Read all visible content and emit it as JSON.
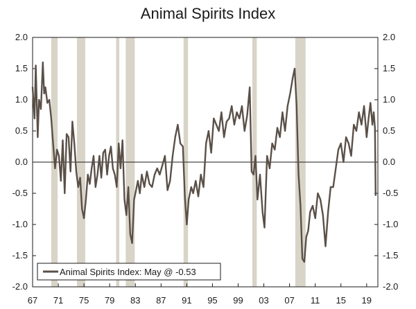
{
  "chart_data": {
    "type": "line",
    "title": "Animal Spirits Index",
    "xlabel": "",
    "ylabel": "",
    "xlim": [
      1967,
      2020.75
    ],
    "ylim": [
      -2.0,
      2.0
    ],
    "y_ticks": [
      "2.0",
      "1.5",
      "1.0",
      "0.5",
      "0.0",
      "-0.5",
      "-1.0",
      "-1.5",
      "-2.0"
    ],
    "x_ticks": [
      "67",
      "71",
      "75",
      "79",
      "83",
      "87",
      "91",
      "95",
      "99",
      "03",
      "07",
      "11",
      "15",
      "19"
    ],
    "recessions": [
      [
        1969.9,
        1970.9
      ],
      [
        1973.9,
        1975.2
      ],
      [
        1980.0,
        1980.5
      ],
      [
        1981.5,
        1982.9
      ],
      [
        1990.5,
        1991.2
      ],
      [
        2001.2,
        2001.9
      ],
      [
        2007.9,
        2009.5
      ]
    ],
    "legend": "Animal Spirits Index: May @ -0.53",
    "legend_position": "bottom-left",
    "line_color": "#5a5048",
    "recession_color": "#d9d4c8",
    "series": [
      {
        "name": "Animal Spirits Index",
        "x": [
          1967.0,
          1967.3,
          1967.5,
          1967.8,
          1968.0,
          1968.3,
          1968.6,
          1968.8,
          1969.0,
          1969.3,
          1969.6,
          1969.9,
          1970.2,
          1970.5,
          1970.8,
          1971.1,
          1971.4,
          1971.7,
          1972.0,
          1972.3,
          1972.6,
          1972.9,
          1973.2,
          1973.5,
          1973.8,
          1974.1,
          1974.4,
          1974.7,
          1975.0,
          1975.3,
          1975.6,
          1975.9,
          1976.2,
          1976.5,
          1976.8,
          1977.1,
          1977.4,
          1977.7,
          1978.0,
          1978.3,
          1978.6,
          1978.9,
          1979.2,
          1979.5,
          1979.8,
          1980.1,
          1980.4,
          1980.7,
          1981.0,
          1981.3,
          1981.6,
          1981.9,
          1982.2,
          1982.5,
          1982.8,
          1983.1,
          1983.4,
          1983.7,
          1984.0,
          1984.4,
          1984.8,
          1985.2,
          1985.6,
          1986.0,
          1986.4,
          1986.8,
          1987.2,
          1987.6,
          1988.0,
          1988.4,
          1988.8,
          1989.2,
          1989.6,
          1990.0,
          1990.4,
          1990.7,
          1991.0,
          1991.3,
          1991.7,
          1992.0,
          1992.4,
          1992.8,
          1993.2,
          1993.6,
          1994.0,
          1994.4,
          1994.8,
          1995.2,
          1995.6,
          1996.0,
          1996.4,
          1996.8,
          1997.2,
          1997.6,
          1998.0,
          1998.4,
          1998.8,
          1999.2,
          1999.6,
          2000.0,
          2000.4,
          2000.8,
          2001.1,
          2001.4,
          2001.7,
          2002.0,
          2002.4,
          2002.8,
          2003.1,
          2003.5,
          2003.9,
          2004.3,
          2004.7,
          2005.1,
          2005.5,
          2005.9,
          2006.3,
          2006.7,
          2007.1,
          2007.5,
          2007.8,
          2008.1,
          2008.4,
          2008.7,
          2009.0,
          2009.3,
          2009.6,
          2009.9,
          2010.2,
          2010.6,
          2011.0,
          2011.4,
          2011.8,
          2012.2,
          2012.6,
          2013.0,
          2013.4,
          2013.8,
          2014.2,
          2014.6,
          2015.0,
          2015.4,
          2015.8,
          2016.2,
          2016.6,
          2017.0,
          2017.4,
          2017.8,
          2018.2,
          2018.6,
          2019.0,
          2019.3,
          2019.6,
          2019.9,
          2020.1,
          2020.3,
          2020.4
        ],
        "values": [
          1.2,
          0.7,
          1.55,
          0.4,
          1.0,
          0.85,
          1.6,
          1.1,
          1.2,
          0.95,
          1.0,
          0.7,
          0.3,
          -0.1,
          0.2,
          0.1,
          -0.3,
          0.35,
          -0.5,
          0.45,
          0.4,
          -0.15,
          0.65,
          0.3,
          -0.15,
          -0.4,
          -0.25,
          -0.75,
          -0.9,
          -0.6,
          -0.2,
          -0.35,
          -0.1,
          0.1,
          -0.4,
          -0.2,
          0.1,
          -0.25,
          0.15,
          0.2,
          -0.2,
          0.1,
          0.25,
          -0.1,
          -0.2,
          -0.4,
          0.3,
          -0.1,
          0.35,
          -0.6,
          -0.85,
          -0.4,
          -1.15,
          -1.3,
          -0.6,
          -0.45,
          -0.3,
          -0.5,
          -0.2,
          -0.4,
          -0.15,
          -0.35,
          -0.4,
          -0.2,
          -0.1,
          -0.2,
          -0.05,
          0.1,
          -0.45,
          -0.3,
          0.1,
          0.4,
          0.6,
          0.3,
          0.25,
          -0.55,
          -1.0,
          -0.6,
          -0.4,
          -0.5,
          -0.3,
          -0.55,
          -0.2,
          -0.4,
          0.3,
          0.5,
          0.15,
          0.7,
          0.6,
          0.5,
          0.8,
          0.4,
          0.65,
          0.7,
          0.9,
          0.6,
          0.8,
          0.7,
          0.9,
          0.5,
          0.75,
          1.2,
          -0.15,
          -0.2,
          0.1,
          -0.6,
          -0.2,
          -0.8,
          -1.05,
          0.1,
          -0.1,
          0.3,
          0.2,
          0.55,
          0.4,
          0.8,
          0.5,
          0.9,
          1.1,
          1.35,
          1.5,
          0.9,
          -0.2,
          -0.7,
          -1.55,
          -1.6,
          -1.2,
          -1.1,
          -0.8,
          -0.7,
          -0.9,
          -0.5,
          -0.6,
          -0.85,
          -1.35,
          -0.8,
          -0.4,
          -0.4,
          -0.1,
          0.2,
          0.3,
          0.0,
          0.4,
          0.3,
          0.1,
          0.6,
          0.5,
          0.8,
          0.6,
          0.9,
          0.4,
          0.7,
          0.95,
          0.6,
          0.8,
          0.55,
          -0.53
        ]
      }
    ]
  }
}
